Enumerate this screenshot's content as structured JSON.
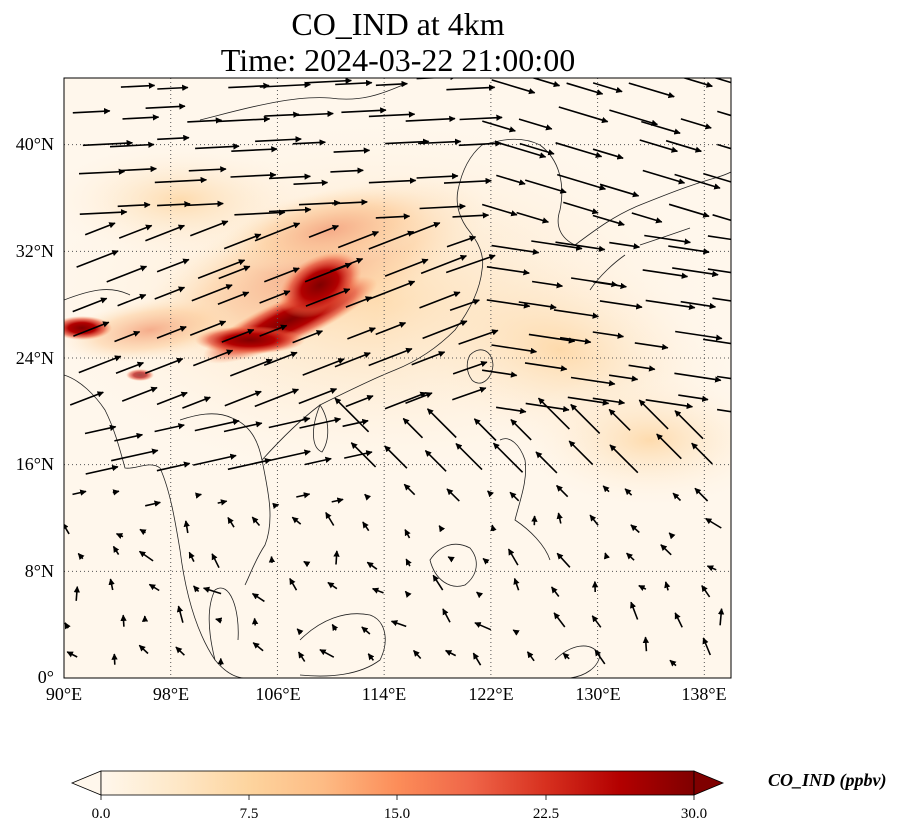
{
  "title_line1": "CO_IND at 4km",
  "title_line2": "Time: 2024-03-22 21:00:00",
  "map": {
    "lon_range": [
      90,
      140
    ],
    "lat_range": [
      0,
      45
    ],
    "gridline_style": "dotted",
    "lon_ticks": [
      {
        "value": 90,
        "label": "90°E"
      },
      {
        "value": 98,
        "label": "98°E"
      },
      {
        "value": 106,
        "label": "106°E"
      },
      {
        "value": 114,
        "label": "114°E"
      },
      {
        "value": 122,
        "label": "122°E"
      },
      {
        "value": 130,
        "label": "130°E"
      },
      {
        "value": 138,
        "label": "138°E"
      }
    ],
    "lat_ticks": [
      {
        "value": 0,
        "label": "0°"
      },
      {
        "value": 8,
        "label": "8°N"
      },
      {
        "value": 16,
        "label": "16°N"
      },
      {
        "value": 24,
        "label": "24°N"
      },
      {
        "value": 32,
        "label": "32°N"
      },
      {
        "value": 40,
        "label": "40°N"
      }
    ]
  },
  "colorbar": {
    "label": "CO_IND (ppbv)",
    "min": 0,
    "max": 30,
    "colormap": "OrRd",
    "extend": "both",
    "ticks": [
      "0.0",
      "7.5",
      "15.0",
      "22.5",
      "30.0"
    ]
  },
  "colors": {
    "low": "#fff7ec",
    "mid": "#fc8d59",
    "high": "#7f0000",
    "coast": "#222222",
    "grid": "#555555",
    "vector": "#000000"
  }
}
